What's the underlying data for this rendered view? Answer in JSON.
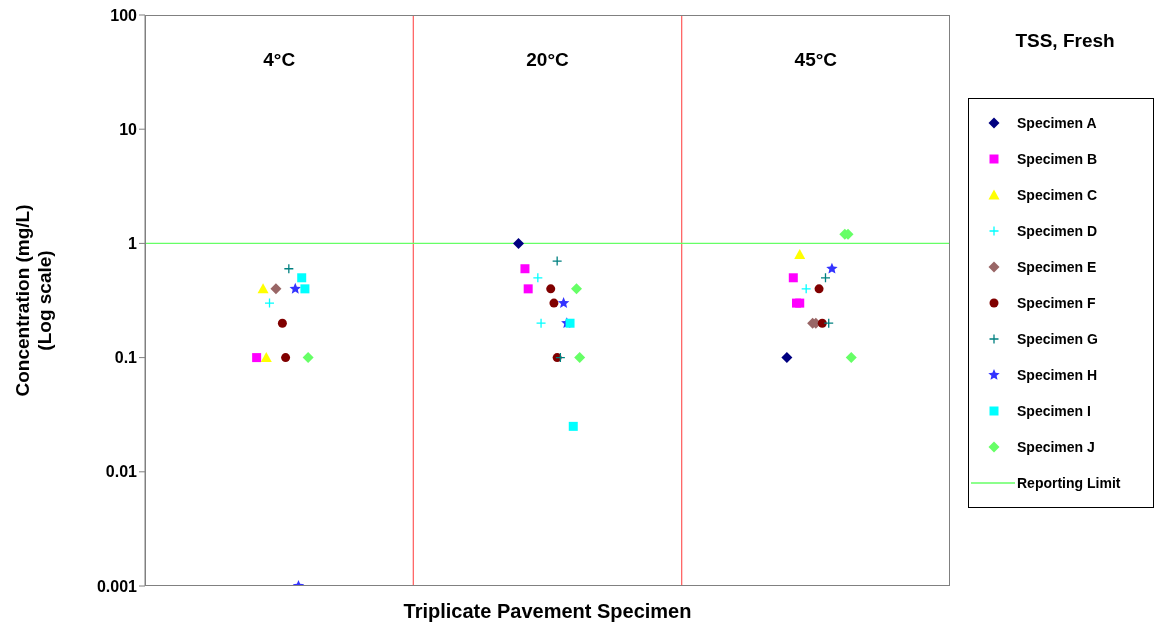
{
  "chart_data": {
    "type": "scatter",
    "title": "TSS, Fresh",
    "xlabel": "Triplicate Pavement Specimen",
    "ylabel": "Concentration (mg/L)\n(Log scale)",
    "log": "y",
    "categories": [
      "4°C",
      "20°C",
      "45°C"
    ],
    "ylim": [
      0.001,
      100
    ],
    "yticks": [
      0.001,
      0.01,
      0.1,
      1,
      10,
      100
    ],
    "grid": "x",
    "legend": "right",
    "ref_lines": [
      {
        "axis": "y",
        "value": 1,
        "label": "Reporting Limit",
        "color": "#66ff66"
      }
    ],
    "series": [
      {
        "name": "Specimen A",
        "color": "#000080",
        "marker": "diamond",
        "x": [
          "20°C",
          "45°C"
        ],
        "values": [
          1,
          0.1
        ]
      },
      {
        "name": "Specimen B",
        "color": "#ff00ff",
        "marker": "square",
        "x": [
          "4°C",
          "20°C",
          "20°C",
          "45°C",
          "45°C",
          "45°C"
        ],
        "values": [
          0.1,
          0.6,
          0.4,
          0.5,
          0.3,
          0.3
        ]
      },
      {
        "name": "Specimen C",
        "color": "#ffff00",
        "marker": "triangle",
        "x": [
          "4°C",
          "4°C",
          "45°C"
        ],
        "values": [
          0.4,
          0.1,
          0.8
        ]
      },
      {
        "name": "Specimen D",
        "color": "#00ffff",
        "marker": "cross",
        "x": [
          "4°C",
          "20°C",
          "20°C",
          "45°C"
        ],
        "values": [
          0.3,
          0.5,
          0.2,
          0.4
        ]
      },
      {
        "name": "Specimen E",
        "color": "#996666",
        "marker": "diamond",
        "x": [
          "4°C",
          "45°C",
          "45°C"
        ],
        "values": [
          0.4,
          0.2,
          0.2
        ]
      },
      {
        "name": "Specimen F",
        "color": "#800000",
        "marker": "circle",
        "x": [
          "4°C",
          "4°C",
          "20°C",
          "20°C",
          "20°C",
          "45°C",
          "45°C"
        ],
        "values": [
          0.2,
          0.1,
          0.4,
          0.3,
          0.1,
          0.4,
          0.2
        ]
      },
      {
        "name": "Specimen G",
        "color": "#008080",
        "marker": "cross",
        "x": [
          "4°C",
          "20°C",
          "20°C",
          "45°C",
          "45°C"
        ],
        "values": [
          0.6,
          0.7,
          0.1,
          0.5,
          0.2
        ]
      },
      {
        "name": "Specimen H",
        "color": "#3333ff",
        "marker": "star",
        "x": [
          "4°C",
          "4°C",
          "20°C",
          "20°C",
          "45°C"
        ],
        "values": [
          0.4,
          0.001,
          0.3,
          0.2,
          0.6
        ]
      },
      {
        "name": "Specimen I",
        "color": "#00ffff",
        "marker": "square",
        "x": [
          "4°C",
          "4°C",
          "20°C",
          "20°C"
        ],
        "values": [
          0.5,
          0.4,
          0.2,
          0.025
        ]
      },
      {
        "name": "Specimen J",
        "color": "#66ff66",
        "marker": "diamond",
        "x": [
          "4°C",
          "20°C",
          "20°C",
          "45°C",
          "45°C",
          "45°C"
        ],
        "values": [
          0.1,
          0.4,
          0.1,
          1.2,
          1.2,
          0.1
        ]
      }
    ]
  }
}
